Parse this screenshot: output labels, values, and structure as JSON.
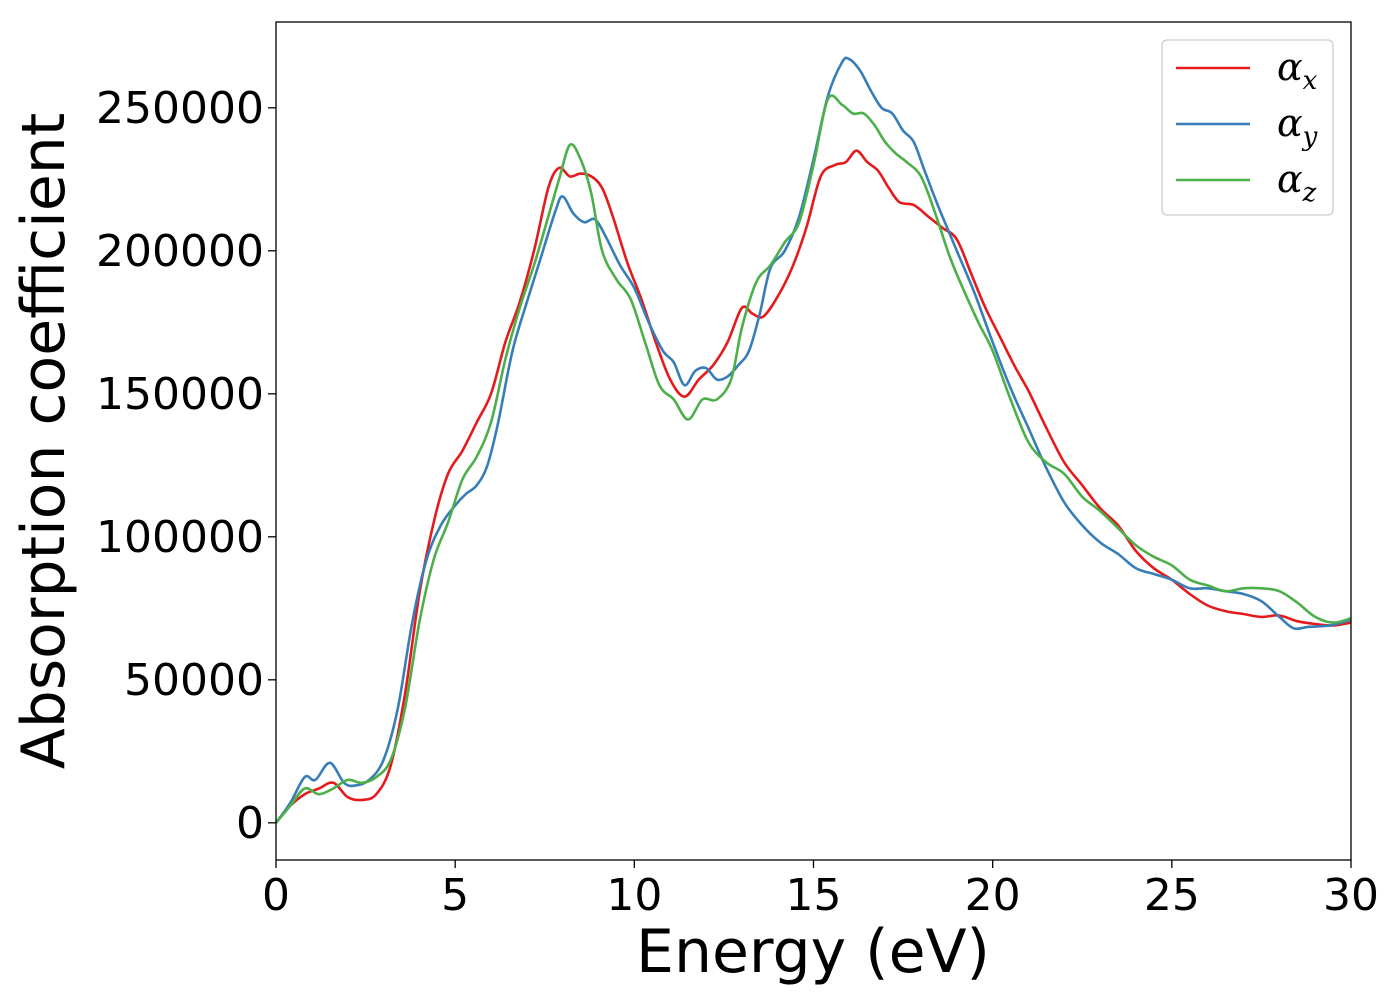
{
  "chart_data": {
    "type": "line",
    "title": "",
    "xlabel": "Energy (eV)",
    "ylabel": "Absorption coefficient",
    "xlim": [
      0,
      30
    ],
    "ylim": [
      -13000,
      280000
    ],
    "xticks": [
      0,
      5,
      10,
      15,
      20,
      25,
      30
    ],
    "yticks": [
      0,
      50000,
      100000,
      150000,
      200000,
      250000
    ],
    "grid": false,
    "legend": "top-right",
    "series": [
      {
        "name": "αx",
        "symbol": "α",
        "subscript": "x",
        "color": "#e41a1c",
        "x": [
          0,
          0.4,
          0.8,
          1.2,
          1.6,
          2.0,
          2.4,
          2.8,
          3.2,
          3.6,
          4.0,
          4.4,
          4.8,
          5.2,
          5.6,
          6.0,
          6.4,
          6.8,
          7.2,
          7.6,
          7.9,
          8.2,
          8.5,
          8.8,
          9.1,
          9.4,
          9.8,
          10.2,
          10.6,
          11.0,
          11.4,
          11.8,
          12.2,
          12.6,
          13.0,
          13.3,
          13.6,
          14.0,
          14.4,
          14.8,
          15.2,
          15.6,
          15.9,
          16.2,
          16.5,
          16.8,
          17.1,
          17.4,
          17.8,
          18.2,
          18.6,
          19.0,
          19.4,
          19.8,
          20.2,
          20.6,
          21.0,
          21.5,
          22.0,
          22.5,
          23.0,
          23.5,
          24.0,
          24.5,
          25.0,
          25.5,
          26.0,
          26.5,
          27.0,
          27.5,
          28.0,
          28.5,
          29.0,
          29.5,
          30.0
        ],
        "values": [
          0,
          6000,
          10000,
          12000,
          14000,
          9000,
          8000,
          10000,
          20000,
          45000,
          80000,
          105000,
          122000,
          130000,
          140000,
          150000,
          168000,
          182000,
          200000,
          222000,
          229000,
          226000,
          227000,
          226000,
          222000,
          212000,
          196000,
          183000,
          168000,
          155000,
          149000,
          155000,
          160000,
          168000,
          180000,
          178000,
          177000,
          184000,
          194000,
          208000,
          226000,
          230000,
          231000,
          235000,
          231000,
          228000,
          222000,
          217000,
          216000,
          212000,
          208000,
          204000,
          192000,
          180000,
          170000,
          160000,
          151000,
          138000,
          126000,
          118000,
          110000,
          104000,
          95000,
          89000,
          85000,
          80000,
          76000,
          74000,
          73000,
          72000,
          72500,
          70500,
          69500,
          69000,
          70000
        ]
      },
      {
        "name": "αy",
        "symbol": "α",
        "subscript": "y",
        "color": "#377eb8",
        "x": [
          0,
          0.4,
          0.8,
          1.1,
          1.5,
          1.9,
          2.2,
          2.6,
          3.0,
          3.4,
          3.8,
          4.2,
          4.6,
          5.0,
          5.3,
          5.6,
          5.9,
          6.2,
          6.6,
          7.0,
          7.4,
          7.8,
          8.0,
          8.3,
          8.6,
          8.9,
          9.2,
          9.6,
          10.0,
          10.4,
          10.8,
          11.1,
          11.4,
          11.7,
          12.0,
          12.3,
          12.6,
          12.9,
          13.2,
          13.5,
          13.8,
          14.2,
          14.6,
          15.0,
          15.4,
          15.8,
          16.0,
          16.3,
          16.6,
          16.9,
          17.2,
          17.5,
          17.8,
          18.1,
          18.5,
          19.0,
          19.5,
          20.0,
          20.5,
          21.0,
          21.5,
          22.0,
          22.5,
          23.0,
          23.5,
          24.0,
          24.5,
          25.0,
          25.5,
          26.0,
          26.5,
          27.0,
          27.5,
          28.0,
          28.4,
          28.8,
          29.4,
          30.0
        ],
        "values": [
          0,
          7000,
          16000,
          15000,
          21000,
          14000,
          13000,
          15000,
          22000,
          40000,
          70000,
          92000,
          104000,
          111000,
          115000,
          118000,
          125000,
          140000,
          165000,
          182000,
          198000,
          214000,
          219000,
          213000,
          210000,
          211000,
          205000,
          195000,
          187000,
          175000,
          165000,
          161000,
          153000,
          158000,
          159000,
          155000,
          156000,
          160000,
          165000,
          178000,
          194000,
          200000,
          212000,
          232000,
          254000,
          266000,
          267000,
          263000,
          256000,
          250000,
          248000,
          242000,
          238000,
          228000,
          215000,
          200000,
          185000,
          168000,
          152000,
          138000,
          124000,
          112000,
          104000,
          98000,
          94000,
          89000,
          87000,
          85000,
          82000,
          82000,
          81000,
          80000,
          77500,
          72000,
          68000,
          68500,
          69000,
          71000
        ]
      },
      {
        "name": "αz",
        "symbol": "α",
        "subscript": "z",
        "color": "#4daf4a",
        "x": [
          0,
          0.4,
          0.8,
          1.2,
          1.6,
          2.0,
          2.4,
          2.8,
          3.2,
          3.6,
          4.0,
          4.4,
          4.8,
          5.2,
          5.6,
          6.0,
          6.4,
          6.8,
          7.2,
          7.6,
          7.9,
          8.2,
          8.5,
          8.8,
          9.1,
          9.5,
          9.9,
          10.3,
          10.7,
          11.1,
          11.5,
          11.9,
          12.3,
          12.7,
          13.0,
          13.4,
          13.8,
          14.2,
          14.6,
          15.0,
          15.4,
          15.8,
          16.1,
          16.4,
          16.7,
          17.0,
          17.3,
          17.6,
          18.0,
          18.4,
          18.8,
          19.2,
          19.6,
          20.0,
          20.5,
          21.0,
          21.5,
          22.0,
          22.5,
          23.0,
          23.5,
          24.0,
          24.5,
          25.0,
          25.5,
          26.0,
          26.5,
          27.0,
          27.5,
          28.0,
          28.5,
          29.0,
          29.5,
          30.0
        ],
        "values": [
          0,
          6000,
          12000,
          10000,
          12000,
          15000,
          14000,
          16000,
          22000,
          40000,
          70000,
          92000,
          105000,
          120000,
          128000,
          140000,
          162000,
          180000,
          195000,
          212000,
          225000,
          237000,
          232000,
          220000,
          200000,
          190000,
          183000,
          168000,
          153000,
          148000,
          141000,
          148000,
          148000,
          155000,
          173000,
          189000,
          195000,
          203000,
          210000,
          230000,
          253000,
          251000,
          248000,
          248000,
          244000,
          238000,
          234000,
          231000,
          226000,
          213000,
          198000,
          186000,
          175000,
          165000,
          148000,
          133000,
          126000,
          122000,
          114000,
          109000,
          103000,
          97000,
          93000,
          90000,
          85000,
          83000,
          81000,
          82000,
          82000,
          81000,
          77000,
          72000,
          70000,
          71500
        ]
      }
    ]
  }
}
